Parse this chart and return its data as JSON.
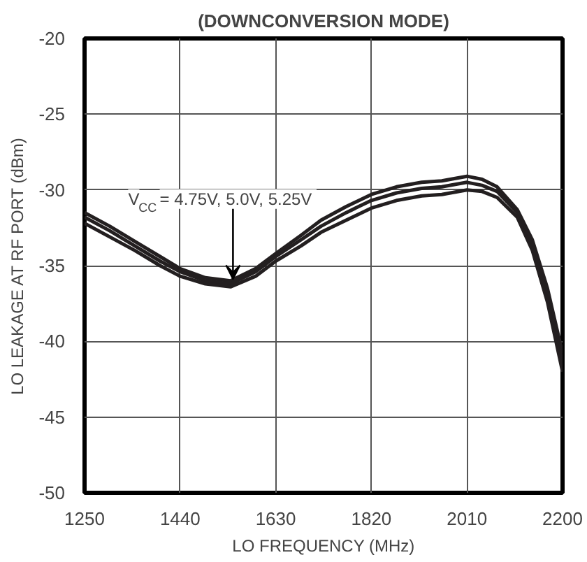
{
  "chart_data": {
    "type": "line",
    "title": "(DOWNCONVERSION MODE)",
    "xlabel": "LO FREQUENCY (MHz)",
    "ylabel": "LO LEAKAGE AT RF PORT (dBm)",
    "x": [
      1250,
      1300,
      1350,
      1400,
      1440,
      1490,
      1540,
      1590,
      1630,
      1680,
      1720,
      1770,
      1820,
      1870,
      1920,
      1960,
      2010,
      2040,
      2070,
      2110,
      2140,
      2170,
      2200
    ],
    "series": [
      {
        "color": "#231f20",
        "values": [
          -31.5,
          -32.4,
          -33.4,
          -34.4,
          -35.2,
          -35.8,
          -36.0,
          -35.2,
          -34.2,
          -33.0,
          -32.0,
          -31.1,
          -30.3,
          -29.8,
          -29.5,
          -29.4,
          -29.1,
          -29.3,
          -29.8,
          -31.3,
          -33.3,
          -36.5,
          -40.8
        ]
      },
      {
        "color": "#231f20",
        "values": [
          -31.8,
          -32.7,
          -33.7,
          -34.7,
          -35.4,
          -36.0,
          -36.2,
          -35.4,
          -34.4,
          -33.3,
          -32.4,
          -31.5,
          -30.7,
          -30.2,
          -29.9,
          -29.8,
          -29.5,
          -29.7,
          -30.1,
          -31.5,
          -33.6,
          -37.0,
          -41.4
        ]
      },
      {
        "color": "#231f20",
        "values": [
          -32.2,
          -33.1,
          -34.0,
          -35.0,
          -35.7,
          -36.2,
          -36.4,
          -35.7,
          -34.7,
          -33.7,
          -32.8,
          -32.0,
          -31.2,
          -30.7,
          -30.4,
          -30.3,
          -30.0,
          -30.1,
          -30.5,
          -31.8,
          -34.0,
          -37.4,
          -42.0
        ]
      }
    ],
    "xlim": [
      1250,
      2200
    ],
    "ylim": [
      -50,
      -20
    ],
    "xticks": [
      1250,
      1440,
      1630,
      1820,
      2010,
      2200
    ],
    "yticks": [
      -50,
      -45,
      -40,
      -35,
      -30,
      -25,
      -20
    ],
    "grid": true,
    "marker": "none",
    "line_style": "solid",
    "annotations": [
      {
        "text": "V$_{CC}$ = 4.75V, 5.0V, 5.25V",
        "x": 1545,
        "y": -36.0
      }
    ]
  }
}
